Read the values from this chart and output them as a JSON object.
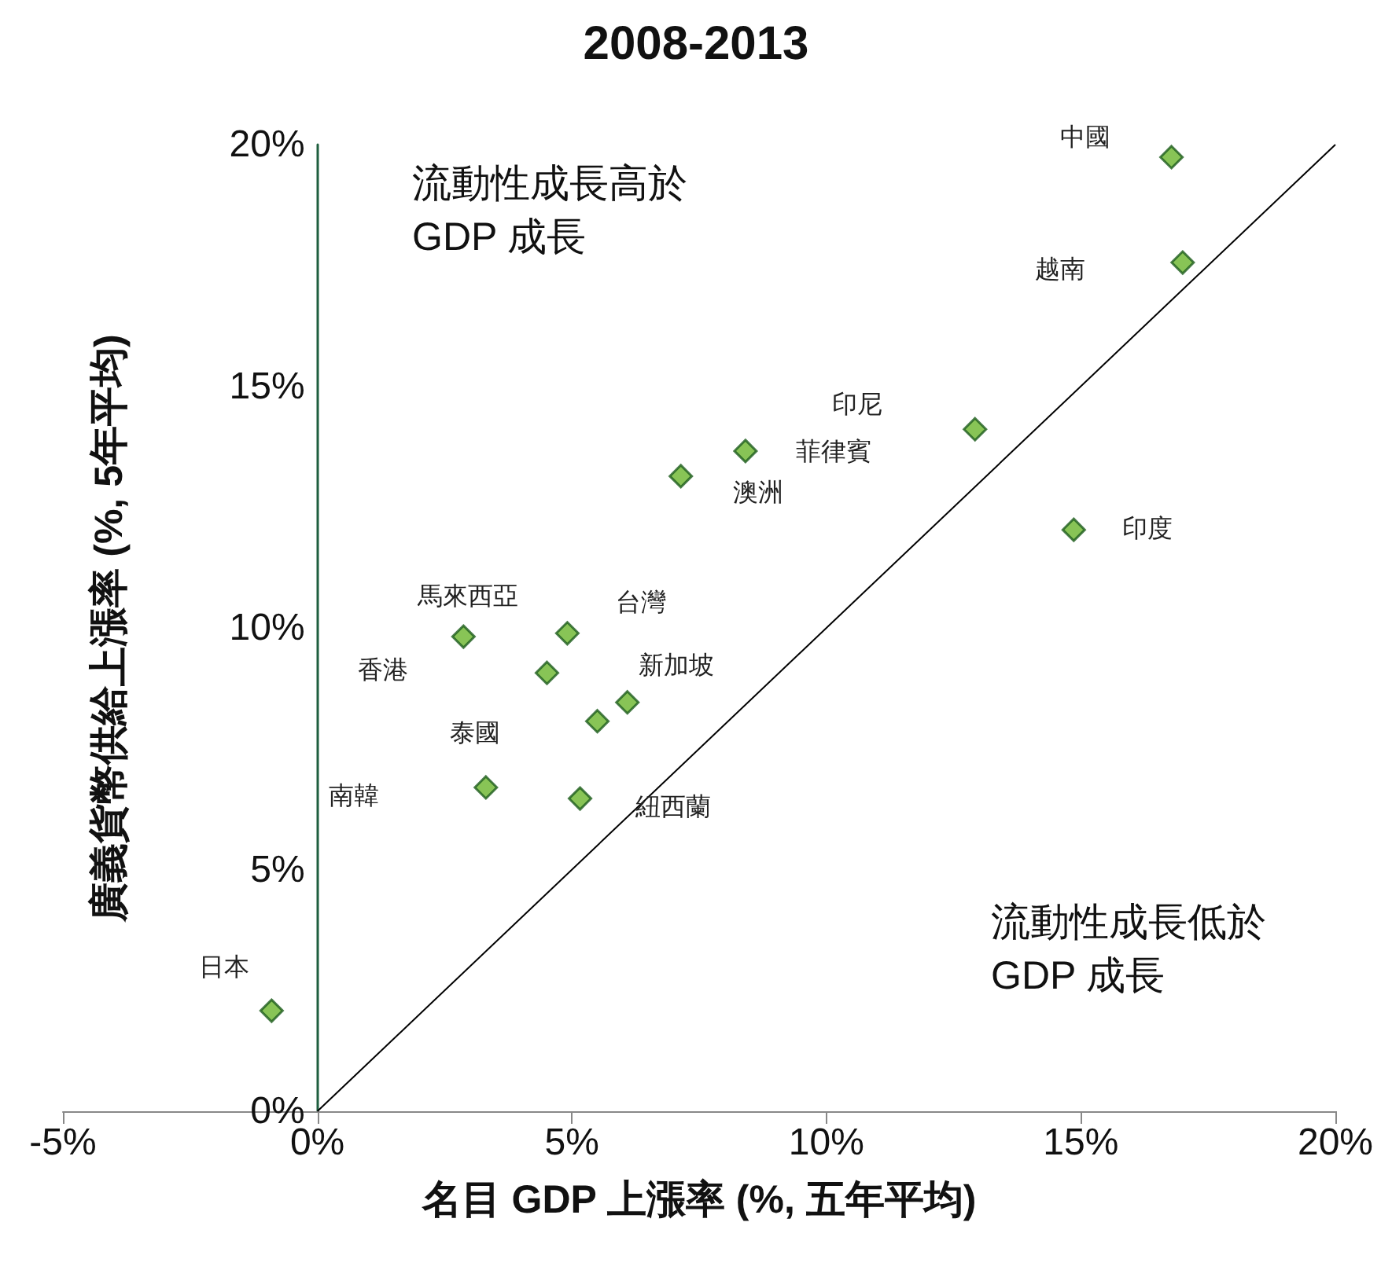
{
  "chart_data": {
    "type": "scatter",
    "title": "2008-2013",
    "xlabel": "名目 GDP 上漲率 (%, 五年平均)",
    "ylabel": "廣義貨幣供給上漲率 (%, 5年平均)",
    "xlim": [
      -5,
      20
    ],
    "xticks": [
      {
        "value": -5,
        "label": "-5%"
      },
      {
        "value": 0,
        "label": "0%"
      },
      {
        "value": 5,
        "label": "5%"
      },
      {
        "value": 10,
        "label": "10%"
      },
      {
        "value": 15,
        "label": "15%"
      },
      {
        "value": 20,
        "label": "20%"
      }
    ],
    "ylim": [
      0,
      20
    ],
    "yticks": [
      {
        "value": 0,
        "label": "0%"
      },
      {
        "value": 5,
        "label": "5%"
      },
      {
        "value": 10,
        "label": "10%"
      },
      {
        "value": 15,
        "label": "15%"
      },
      {
        "value": 20,
        "label": "20%"
      }
    ],
    "grid": false,
    "marker": "diamond",
    "series": [
      {
        "color": "#6ab52c",
        "x": [
          16.78,
          17.0,
          12.92,
          14.86,
          8.41,
          7.14,
          4.91,
          2.87,
          4.51,
          6.09,
          5.5,
          3.31,
          5.16,
          -0.9
        ],
        "values": [
          19.74,
          17.56,
          14.11,
          12.03,
          13.66,
          13.14,
          9.89,
          9.82,
          9.07,
          8.46,
          8.07,
          6.7,
          6.47,
          2.08
        ]
      },
      {
        "type": "line",
        "color": "#000000",
        "marker": "none",
        "x": [
          0,
          20
        ],
        "values": [
          0,
          20
        ]
      }
    ],
    "annotations": [
      "流動性成長高於\nGDP 成長",
      "流動性成長低於\nGDP 成長",
      {
        "text": "中國",
        "x": 16.78,
        "y": 19.74
      },
      "越南",
      "印尼",
      {
        "text": "印度",
        "x": 14.86,
        "y": 12.03
      },
      {
        "text": "菲律賓",
        "x": 8.41,
        "y": 13.66
      },
      {
        "text": "澳洲",
        "x": 7.14,
        "y": 13.14
      },
      {
        "text": "台灣",
        "x": 4.91,
        "y": 9.89
      },
      {
        "text": "馬來西亞",
        "x": 2.87,
        "y": 9.82
      },
      "香港",
      {
        "text": "新加坡",
        "x": 6.09,
        "y": 8.46
      },
      "泰國",
      "南韓",
      {
        "text": "紐西蘭",
        "x": 5.16,
        "y": 6.47
      },
      {
        "text": "日本",
        "x": -0.9,
        "y": 2.08
      }
    ]
  }
}
